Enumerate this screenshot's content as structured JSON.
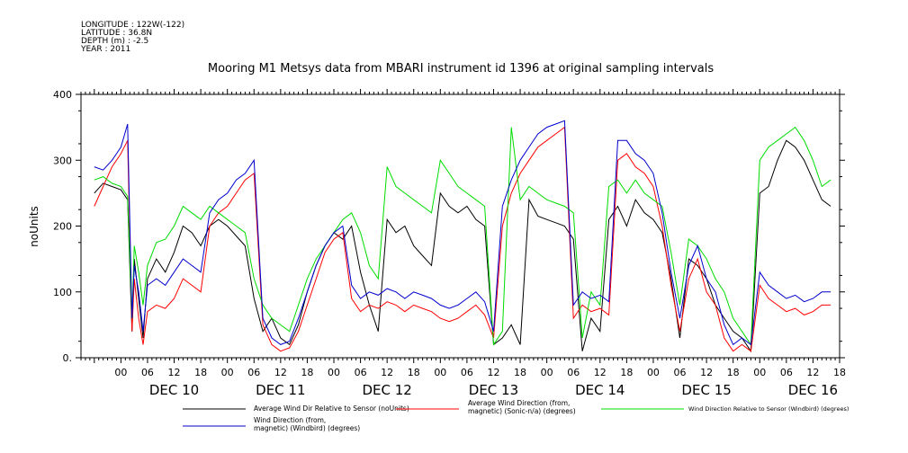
{
  "meta": {
    "longitude": "LONGITUDE : 122W(-122)",
    "latitude": "LATITUDE : 36.8N",
    "depth": "DEPTH (m) : -2.5",
    "year": "YEAR : 2011"
  },
  "chart_data": {
    "type": "line",
    "title": "Mooring M1 Metsys data from MBARI instrument id 1396 at original sampling intervals",
    "ylabel": "noUnits",
    "xlabel": "",
    "ylim": [
      0,
      400
    ],
    "yticks": [
      "0.",
      "100",
      "200",
      "300",
      "400"
    ],
    "xlim_hours": [
      -9,
      162
    ],
    "hour_ticks": [
      "00",
      "06",
      "12",
      "18",
      "00",
      "06",
      "12",
      "18",
      "00",
      "06",
      "12",
      "18",
      "00",
      "06",
      "12",
      "18",
      "00",
      "06",
      "12",
      "18",
      "00",
      "06",
      "12",
      "18",
      "00",
      "06",
      "12",
      "18"
    ],
    "day_labels": [
      "DEC 10",
      "DEC 11",
      "DEC 12",
      "DEC 13",
      "DEC 14",
      "DEC 15",
      "DEC 16"
    ],
    "grid": false,
    "legend_position": "bottom",
    "series": [
      {
        "name": "Average Wind Dir Relative to Sensor (noUnits)",
        "color": "#000000",
        "x": [
          -6,
          -4,
          -2,
          0,
          1.5,
          2.5,
          3,
          4,
          5,
          6,
          8,
          10,
          12,
          14,
          16,
          18,
          20,
          22,
          24,
          26,
          28,
          30,
          32,
          34,
          36,
          38,
          40,
          42,
          44,
          46,
          48,
          50,
          52,
          54,
          56,
          58,
          60,
          62,
          64,
          66,
          68,
          70,
          72,
          74,
          76,
          78,
          80,
          82,
          84,
          86,
          88,
          90,
          92,
          94,
          96,
          98,
          100,
          102,
          104,
          106,
          108,
          110,
          112,
          114,
          116,
          118,
          120,
          122,
          124,
          126,
          128,
          130,
          132,
          134,
          136,
          138,
          140,
          142,
          144,
          146,
          148,
          150,
          152,
          154,
          156,
          158,
          160
        ],
        "y": [
          250,
          265,
          260,
          255,
          240,
          40,
          150,
          90,
          30,
          120,
          150,
          130,
          160,
          200,
          190,
          170,
          200,
          210,
          200,
          185,
          170,
          90,
          40,
          60,
          30,
          20,
          50,
          100,
          140,
          170,
          190,
          180,
          200,
          130,
          80,
          40,
          210,
          190,
          200,
          170,
          155,
          140,
          250,
          230,
          220,
          230,
          210,
          200,
          20,
          30,
          50,
          20,
          240,
          215,
          210,
          205,
          200,
          180,
          10,
          60,
          40,
          210,
          230,
          200,
          240,
          220,
          210,
          190,
          120,
          30,
          150,
          140,
          120,
          80,
          60,
          40,
          30,
          10,
          250,
          260,
          300,
          330,
          320,
          300,
          270,
          240,
          230
        ]
      },
      {
        "name": "Average Wind Direction (from, magnetic) (Sonic-n/a) (degrees)",
        "color": "#ff0000",
        "x": [
          -6,
          -4,
          -2,
          0,
          1.5,
          2.5,
          3,
          4,
          5,
          6,
          8,
          10,
          12,
          14,
          16,
          18,
          20,
          22,
          24,
          26,
          28,
          30,
          32,
          34,
          36,
          38,
          40,
          42,
          44,
          46,
          48,
          50,
          52,
          54,
          56,
          58,
          60,
          62,
          64,
          66,
          68,
          70,
          72,
          74,
          76,
          78,
          80,
          82,
          84,
          86,
          88,
          90,
          92,
          94,
          96,
          98,
          100,
          102,
          104,
          106,
          108,
          110,
          112,
          114,
          116,
          118,
          120,
          122,
          124,
          126,
          128,
          130,
          132,
          134,
          136,
          138,
          140,
          142,
          144,
          146,
          148,
          150,
          152,
          154,
          156,
          158,
          160
        ],
        "y": [
          230,
          260,
          290,
          310,
          330,
          40,
          120,
          60,
          20,
          70,
          80,
          75,
          90,
          120,
          110,
          100,
          200,
          220,
          230,
          250,
          270,
          280,
          50,
          20,
          10,
          15,
          40,
          80,
          120,
          160,
          180,
          190,
          90,
          70,
          80,
          75,
          85,
          80,
          70,
          80,
          75,
          70,
          60,
          55,
          60,
          70,
          80,
          65,
          30,
          200,
          250,
          280,
          300,
          320,
          330,
          340,
          350,
          60,
          80,
          70,
          75,
          65,
          300,
          310,
          290,
          280,
          260,
          200,
          110,
          40,
          120,
          150,
          100,
          80,
          30,
          10,
          20,
          10,
          110,
          90,
          80,
          70,
          75,
          65,
          70,
          80,
          80
        ]
      },
      {
        "name": "Wind Direction Relative to Sensor (Windbird) (degrees)",
        "color": "#00dd00",
        "x": [
          -6,
          -4,
          -2,
          0,
          1.5,
          2.5,
          3,
          4,
          5,
          6,
          8,
          10,
          12,
          14,
          16,
          18,
          20,
          22,
          24,
          26,
          28,
          30,
          32,
          34,
          36,
          38,
          40,
          42,
          44,
          46,
          48,
          50,
          52,
          54,
          56,
          58,
          60,
          62,
          64,
          66,
          68,
          70,
          72,
          74,
          76,
          78,
          80,
          82,
          84,
          86,
          88,
          90,
          92,
          94,
          96,
          98,
          100,
          102,
          104,
          106,
          108,
          110,
          112,
          114,
          116,
          118,
          120,
          122,
          124,
          126,
          128,
          130,
          132,
          134,
          136,
          138,
          140,
          142,
          144,
          146,
          148,
          150,
          152,
          154,
          156,
          158,
          160
        ],
        "y": [
          270,
          275,
          265,
          260,
          245,
          60,
          170,
          130,
          80,
          140,
          175,
          180,
          200,
          230,
          220,
          210,
          230,
          220,
          210,
          200,
          190,
          120,
          80,
          60,
          50,
          40,
          80,
          120,
          150,
          170,
          190,
          210,
          220,
          190,
          140,
          120,
          290,
          260,
          250,
          240,
          230,
          220,
          300,
          280,
          260,
          250,
          240,
          230,
          20,
          40,
          350,
          240,
          260,
          250,
          240,
          235,
          230,
          220,
          30,
          100,
          80,
          260,
          270,
          250,
          270,
          250,
          240,
          230,
          160,
          80,
          180,
          170,
          150,
          120,
          100,
          60,
          40,
          20,
          300,
          320,
          330,
          340,
          350,
          330,
          300,
          260,
          270
        ]
      },
      {
        "name": "Wind Direction (from, magnetic) (Windbird) (degrees)",
        "color": "#0000cc",
        "x": [
          -6,
          -4,
          -2,
          0,
          1.5,
          2.5,
          3,
          4,
          5,
          6,
          8,
          10,
          12,
          14,
          16,
          18,
          20,
          22,
          24,
          26,
          28,
          30,
          32,
          34,
          36,
          38,
          40,
          42,
          44,
          46,
          48,
          50,
          52,
          54,
          56,
          58,
          60,
          62,
          64,
          66,
          68,
          70,
          72,
          74,
          76,
          78,
          80,
          82,
          84,
          86,
          88,
          90,
          92,
          94,
          96,
          98,
          100,
          102,
          104,
          106,
          108,
          110,
          112,
          114,
          116,
          118,
          120,
          122,
          124,
          126,
          128,
          130,
          132,
          134,
          136,
          138,
          140,
          142,
          144,
          146,
          148,
          150,
          152,
          154,
          156,
          158,
          160
        ],
        "y": [
          290,
          285,
          300,
          320,
          355,
          60,
          140,
          100,
          40,
          110,
          120,
          110,
          130,
          150,
          140,
          130,
          220,
          240,
          250,
          270,
          280,
          300,
          60,
          30,
          20,
          25,
          60,
          100,
          140,
          170,
          190,
          200,
          110,
          90,
          100,
          95,
          105,
          100,
          90,
          100,
          95,
          90,
          80,
          75,
          80,
          90,
          100,
          85,
          40,
          230,
          270,
          300,
          320,
          340,
          350,
          355,
          360,
          80,
          100,
          90,
          95,
          85,
          330,
          330,
          310,
          300,
          280,
          220,
          130,
          60,
          140,
          170,
          120,
          100,
          50,
          20,
          30,
          20,
          130,
          110,
          100,
          90,
          95,
          85,
          90,
          100,
          100
        ]
      }
    ]
  }
}
